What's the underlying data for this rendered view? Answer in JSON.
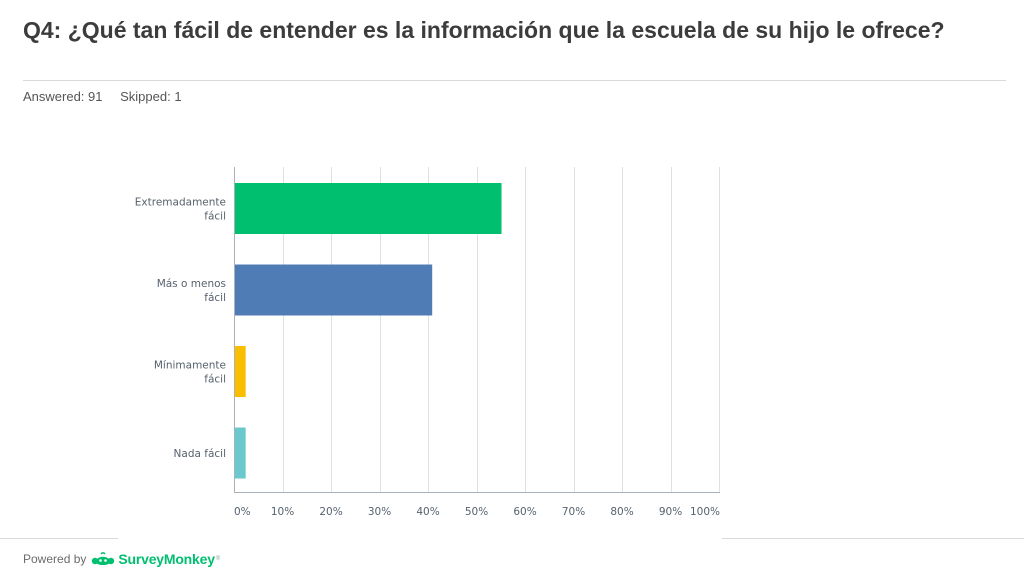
{
  "question": {
    "title": "Q4: ¿Qué tan fácil de entender es la información que la escuela de su hijo le ofrece?",
    "answered": "Answered: 91",
    "skipped": "Skipped: 1"
  },
  "footer": {
    "powered_by": "Powered by",
    "brand": "SurveyMonkey",
    "trademark": "®",
    "logo_icon": "surveymonkey-logo-icon",
    "brand_color": "#00bf6f"
  },
  "chart_data": {
    "type": "bar",
    "orientation": "horizontal",
    "title": "",
    "xlabel": "",
    "ylabel": "",
    "xlim": [
      0,
      100
    ],
    "grid": true,
    "categories": [
      {
        "lines": [
          "Extremadamente",
          "fácil"
        ],
        "color": "#00bf6f"
      },
      {
        "lines": [
          "Más o menos",
          "fácil"
        ],
        "color": "#507cb6"
      },
      {
        "lines": [
          "Mínimamente",
          "fácil"
        ],
        "color": "#f9be00"
      },
      {
        "lines": [
          "Nada fácil"
        ],
        "color": "#6bc8cd"
      }
    ],
    "values": [
      54.95,
      40.66,
      2.2,
      2.2
    ],
    "ticks": [
      "0%",
      "10%",
      "20%",
      "30%",
      "40%",
      "50%",
      "60%",
      "70%",
      "80%",
      "90%",
      "100%"
    ]
  }
}
